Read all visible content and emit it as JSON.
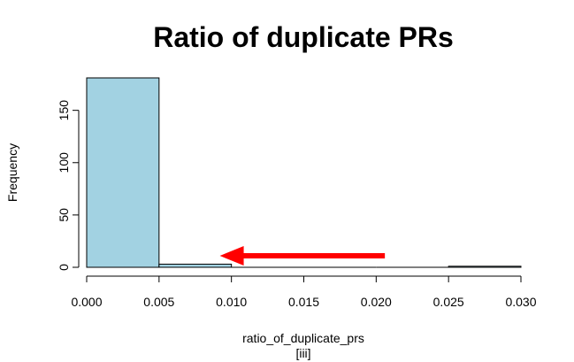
{
  "chart_data": {
    "type": "bar",
    "title": "Ratio of duplicate PRs",
    "xlabel": "ratio_of_duplicate_prs",
    "xlabel_sub": "[iii]",
    "ylabel": "Frequency",
    "bins": [
      {
        "x0": 0.0,
        "x1": 0.005,
        "count": 181
      },
      {
        "x0": 0.005,
        "x1": 0.01,
        "count": 3
      },
      {
        "x0": 0.01,
        "x1": 0.015,
        "count": 0
      },
      {
        "x0": 0.015,
        "x1": 0.02,
        "count": 0
      },
      {
        "x0": 0.02,
        "x1": 0.025,
        "count": 0
      },
      {
        "x0": 0.025,
        "x1": 0.03,
        "count": 1
      }
    ],
    "xlim": [
      0,
      0.03
    ],
    "ylim": [
      0,
      181
    ],
    "xticks": [
      "0.000",
      "0.005",
      "0.010",
      "0.015",
      "0.020",
      "0.025",
      "0.030"
    ],
    "xtick_values": [
      0,
      0.005,
      0.01,
      0.015,
      0.02,
      0.025,
      0.03
    ],
    "yticks": [
      "0",
      "50",
      "100",
      "150"
    ],
    "ytick_values": [
      0,
      50,
      100,
      150
    ],
    "bar_color": "#a2d2e2",
    "annotation": {
      "type": "arrow",
      "color": "#ff0000",
      "from": [
        0.0206,
        11
      ],
      "to": [
        0.0092,
        11
      ]
    }
  }
}
